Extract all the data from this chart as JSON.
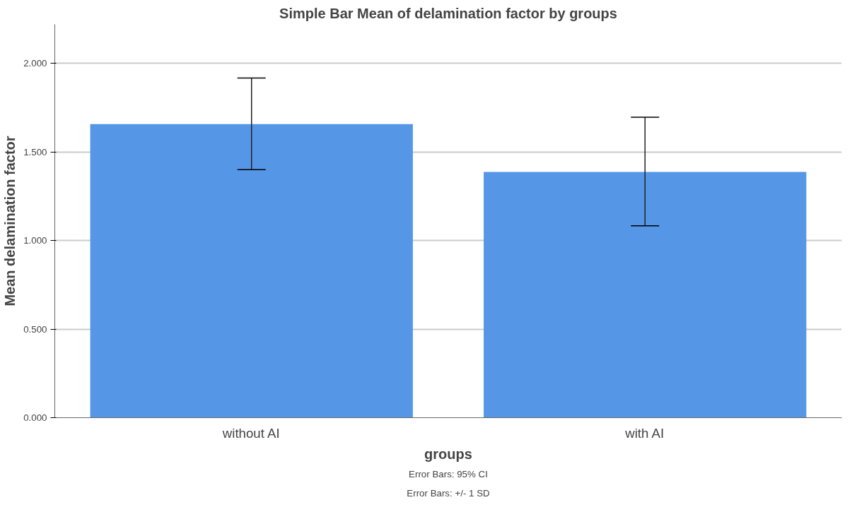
{
  "chart_data": {
    "type": "bar",
    "title": "Simple Bar Mean of delamination factor by groups",
    "xlabel": "groups",
    "ylabel": "Mean delamination factor",
    "categories": [
      "without AI",
      "with AI"
    ],
    "values": [
      1.657,
      1.387
    ],
    "errors": [
      [
        1.4,
        1.917
      ],
      [
        1.083,
        1.696
      ]
    ],
    "color": "#5596e6",
    "ylim": [
      0,
      2.22
    ],
    "yticks": [
      {
        "value": 0,
        "label": "0.000"
      },
      {
        "value": 0.5,
        "label": "0.500"
      },
      {
        "value": 1,
        "label": "1.000"
      },
      {
        "value": 1.5,
        "label": "1.500"
      },
      {
        "value": 2,
        "label": "2.000"
      }
    ],
    "grid": "y",
    "annotations": [
      "Error Bars: 95% CI",
      "Error Bars: +/- 1 SD"
    ]
  }
}
